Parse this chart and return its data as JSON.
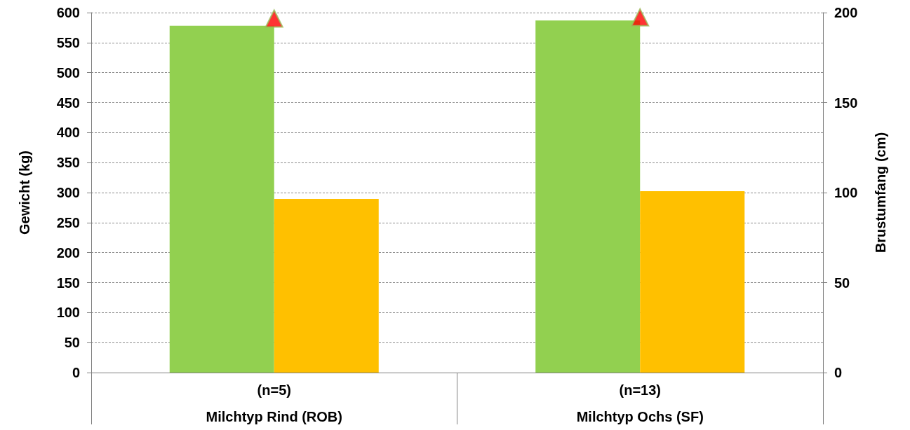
{
  "chart_data": {
    "type": "bar",
    "categories": [
      "(n=5)\nMilchtyp Rind (ROB)",
      "(n=13)\nMilchtyp Ochs (SF)"
    ],
    "ylabel": "Gewicht (kg)",
    "y2label": "Brustumfang (cm)",
    "series": [
      {
        "color": "#92d050",
        "values": [
          578,
          587
        ]
      },
      {
        "color": "#ffc000",
        "axis": "y2",
        "values": [
          96.5,
          100.8
        ]
      },
      {
        "type": "scatter",
        "color": "#ff0000",
        "marker": "triangle",
        "x": [
          "(n=5)\nMilchtyp Rind (ROB)",
          "(n=13)\nMilchtyp Ochs (SF)"
        ],
        "values": [
          590,
          592
        ]
      }
    ],
    "ylim": [
      0,
      600
    ],
    "yticks": [
      0,
      50,
      100,
      150,
      200,
      250,
      300,
      350,
      400,
      450,
      500,
      550,
      600
    ],
    "y2lim": [
      0,
      200
    ],
    "y2ticks": [
      0,
      50,
      100,
      150,
      200
    ],
    "grid": "y"
  }
}
